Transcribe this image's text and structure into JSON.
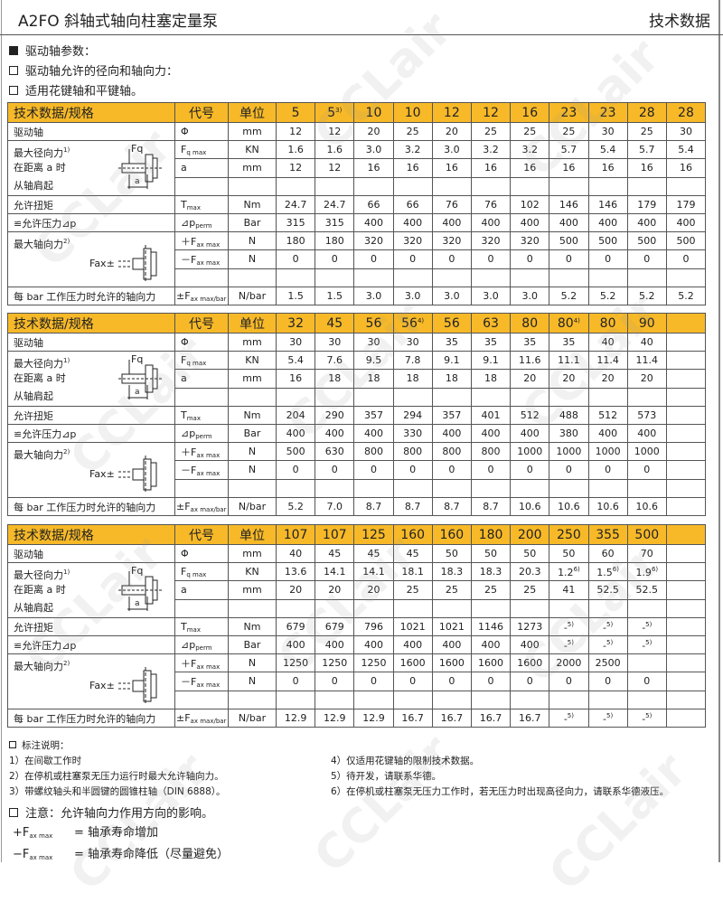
{
  "header": {
    "title": "A2FO 斜轴式轴向柱塞定量泵",
    "section": "技术数据"
  },
  "intro": {
    "heading": "驱动轴参数：",
    "line1": "驱动轴允许的径向和轴向力：",
    "line2": "适用花键轴和平键轴。"
  },
  "colors": {
    "header_fill": "#f7b928",
    "grid": "#555555"
  },
  "watermark": "CCLair",
  "row_labels": {
    "head": "技术数据/规格",
    "symbol_head": "代号",
    "unit_head": "单位",
    "drive_shaft": "驱动轴",
    "radial_lines": [
      "最大径向力",
      "在距离 a 时",
      "从轴肩起"
    ],
    "radial_note": "1)",
    "torque": "允许扭矩",
    "pressure": "≌允许压力⊿p",
    "axial": "最大轴向力",
    "axial_note": "2)",
    "per_bar": "每 bar 工作压力时允许的轴向力",
    "diagram_fq": "Fq",
    "diagram_a": "a",
    "diagram_fax": "Fax±"
  },
  "symbols": {
    "phi": "Φ",
    "fq": [
      "F",
      "q max"
    ],
    "a": "a",
    "t": [
      "T",
      "max"
    ],
    "dp": [
      "⊿p",
      "perm"
    ],
    "pfax": [
      "＋F",
      "ax max"
    ],
    "mfax": [
      "－F",
      "ax max"
    ],
    "pmfax": [
      "±F",
      "ax max/bar"
    ]
  },
  "units": {
    "mm": "mm",
    "kn": "KN",
    "nm": "Nm",
    "bar": "Bar",
    "n": "N",
    "nbar": "N/bar"
  },
  "tables": [
    {
      "sizes": [
        "5",
        {
          "text": "5",
          "note": "3)"
        },
        "10",
        "10",
        "12",
        "12",
        "16",
        "23",
        "23",
        "28",
        "28"
      ],
      "shaft": [
        "12",
        "12",
        "20",
        "25",
        "20",
        "25",
        "25",
        "25",
        "30",
        "25",
        "30"
      ],
      "fq": [
        "1.6",
        "1.6",
        "3.0",
        "3.2",
        "3.0",
        "3.2",
        "3.2",
        "5.7",
        "5.4",
        "5.7",
        "5.4"
      ],
      "a": [
        "12",
        "12",
        "16",
        "16",
        "16",
        "16",
        "16",
        "16",
        "16",
        "16",
        "16"
      ],
      "t": [
        "24.7",
        "24.7",
        "66",
        "66",
        "76",
        "76",
        "102",
        "146",
        "146",
        "179",
        "179"
      ],
      "dp": [
        "315",
        "315",
        "400",
        "400",
        "400",
        "400",
        "400",
        "400",
        "400",
        "400",
        "400"
      ],
      "pfax": [
        "180",
        "180",
        "320",
        "320",
        "320",
        "320",
        "320",
        "500",
        "500",
        "500",
        "500"
      ],
      "mfax": [
        "0",
        "0",
        "0",
        "0",
        "0",
        "0",
        "0",
        "0",
        "0",
        "0",
        "0"
      ],
      "perbar": [
        "1.5",
        "1.5",
        "3.0",
        "3.0",
        "3.0",
        "3.0",
        "3.0",
        "5.2",
        "5.2",
        "5.2",
        "5.2"
      ]
    },
    {
      "sizes": [
        "32",
        "45",
        "56",
        {
          "text": "56",
          "note": "4)"
        },
        "56",
        "63",
        "80",
        {
          "text": "80",
          "note": "4)"
        },
        "80",
        "90",
        ""
      ],
      "shaft": [
        "30",
        "30",
        "30",
        "30",
        "35",
        "35",
        "35",
        "35",
        "40",
        "40",
        ""
      ],
      "fq": [
        "5.4",
        "7.6",
        "9.5",
        "7.8",
        "9.1",
        "9.1",
        "11.6",
        "11.1",
        "11.4",
        "11.4",
        ""
      ],
      "a": [
        "16",
        "18",
        "18",
        "18",
        "18",
        "18",
        "20",
        "20",
        "20",
        "20",
        ""
      ],
      "t": [
        "204",
        "290",
        "357",
        "294",
        "357",
        "401",
        "512",
        "488",
        "512",
        "573",
        ""
      ],
      "dp": [
        "400",
        "400",
        "400",
        "330",
        "400",
        "400",
        "400",
        "380",
        "400",
        "400",
        ""
      ],
      "pfax": [
        "500",
        "630",
        "800",
        "800",
        "800",
        "800",
        "1000",
        "1000",
        "1000",
        "1000",
        ""
      ],
      "mfax": [
        "0",
        "0",
        "0",
        "0",
        "0",
        "0",
        "0",
        "0",
        "0",
        "0",
        ""
      ],
      "perbar": [
        "5.2",
        "7.0",
        "8.7",
        "8.7",
        "8.7",
        "8.7",
        "10.6",
        "10.6",
        "10.6",
        "10.6",
        ""
      ]
    },
    {
      "sizes": [
        "107",
        "107",
        "125",
        "160",
        "160",
        "180",
        "200",
        "250",
        "355",
        "500",
        ""
      ],
      "shaft": [
        "40",
        "45",
        "45",
        "45",
        "50",
        "50",
        "50",
        "50",
        "60",
        "70",
        ""
      ],
      "fq": [
        "13.6",
        "14.1",
        "14.1",
        "18.1",
        "18.3",
        "18.3",
        "20.3",
        {
          "text": "1.2",
          "note": "6)"
        },
        {
          "text": "1.5",
          "note": "6)"
        },
        {
          "text": "1.9",
          "note": "6)"
        },
        ""
      ],
      "a": [
        "20",
        "20",
        "20",
        "25",
        "25",
        "25",
        "25",
        "41",
        "52.5",
        "52.5",
        ""
      ],
      "t": [
        "679",
        "679",
        "796",
        "1021",
        "1021",
        "1146",
        "1273",
        {
          "text": "-",
          "note": "5)"
        },
        {
          "text": "-",
          "note": "5)"
        },
        {
          "text": "-",
          "note": "5)"
        },
        ""
      ],
      "dp": [
        "400",
        "400",
        "400",
        "400",
        "400",
        "400",
        "400",
        {
          "text": "-",
          "note": "5)"
        },
        {
          "text": "-",
          "note": "5)"
        },
        {
          "text": "-",
          "note": "5)"
        },
        ""
      ],
      "pfax": [
        "1250",
        "1250",
        "1250",
        "1600",
        "1600",
        "1600",
        "1600",
        "2000",
        "2500",
        "",
        ""
      ],
      "mfax": [
        "0",
        "0",
        "0",
        "0",
        "0",
        "0",
        "0",
        "0",
        "0",
        "0",
        ""
      ],
      "perbar": [
        "12.9",
        "12.9",
        "12.9",
        "16.7",
        "16.7",
        "16.7",
        "16.7",
        {
          "text": "-",
          "note": "5)"
        },
        {
          "text": "-",
          "note": "5)"
        },
        {
          "text": "-",
          "note": "5)"
        },
        ""
      ]
    }
  ],
  "notes": {
    "heading": "标注说明：",
    "left": [
      "1）在间歇工作时",
      "2）在停机或柱塞泵无压力运行时最大允许轴向力。",
      "3）带螺纹轴头和半圆键的圆锥柱轴（DIN 6888）。"
    ],
    "right": [
      "4）仅适用花键轴的限制技术数据。",
      "5）待开发，请联系华德。",
      "6）在停机或柱塞泵无压力工作时，若无压力时出现高径向力，请联系华德液压。"
    ]
  },
  "attention": {
    "heading": "注意：允许轴向力作用方向的影响。",
    "plus_symbol": [
      "+F",
      "ax  max"
    ],
    "plus_text": "=  轴承寿命增加",
    "minus_symbol": [
      "−F",
      "ax  max"
    ],
    "minus_text": "=  轴承寿命降低（尽量避免）"
  }
}
